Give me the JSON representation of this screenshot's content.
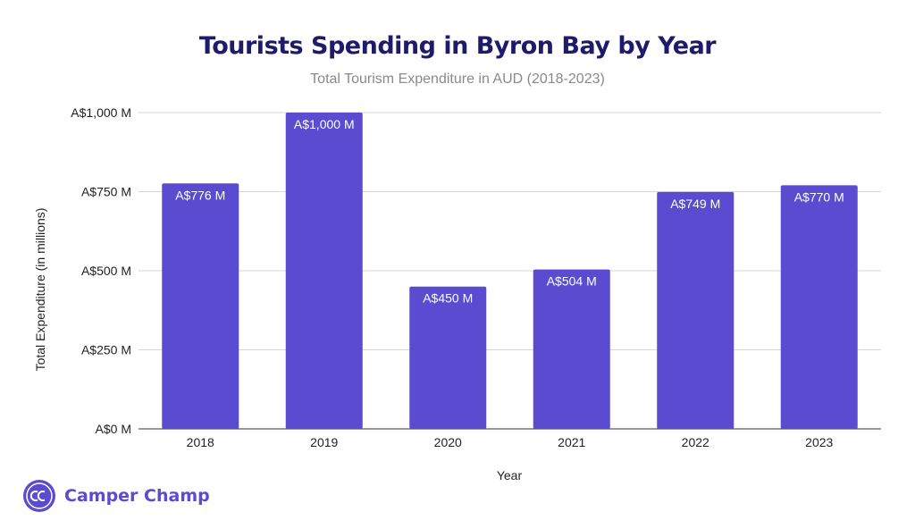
{
  "header": {
    "title": "Tourists Spending in Byron Bay by Year",
    "subtitle": "Total Tourism Expenditure in AUD (2018-2023)"
  },
  "brand": {
    "logo_text": "CC",
    "name": "Camper Champ",
    "color": "#5a4bd1"
  },
  "chart_data": {
    "type": "bar",
    "title": "Tourists Spending in Byron Bay by Year",
    "subtitle": "Total Tourism Expenditure in AUD (2018-2023)",
    "xlabel": "Year",
    "ylabel": "Total Expenditure (in millions)",
    "categories": [
      "2018",
      "2019",
      "2020",
      "2021",
      "2022",
      "2023"
    ],
    "values": [
      776,
      1000,
      450,
      504,
      749,
      770
    ],
    "data_labels": [
      "A$776 M",
      "A$1,000 M",
      "A$450 M",
      "A$504 M",
      "A$749 M",
      "A$770 M"
    ],
    "y_ticks": [
      0,
      250,
      500,
      750,
      1000
    ],
    "y_tick_labels": [
      "A$0 M",
      "A$250 M",
      "A$500 M",
      "A$750 M",
      "A$1,000 M"
    ],
    "ylim": [
      0,
      1000
    ],
    "grid": true,
    "legend": "none",
    "bar_color": "#5a4bd1"
  }
}
